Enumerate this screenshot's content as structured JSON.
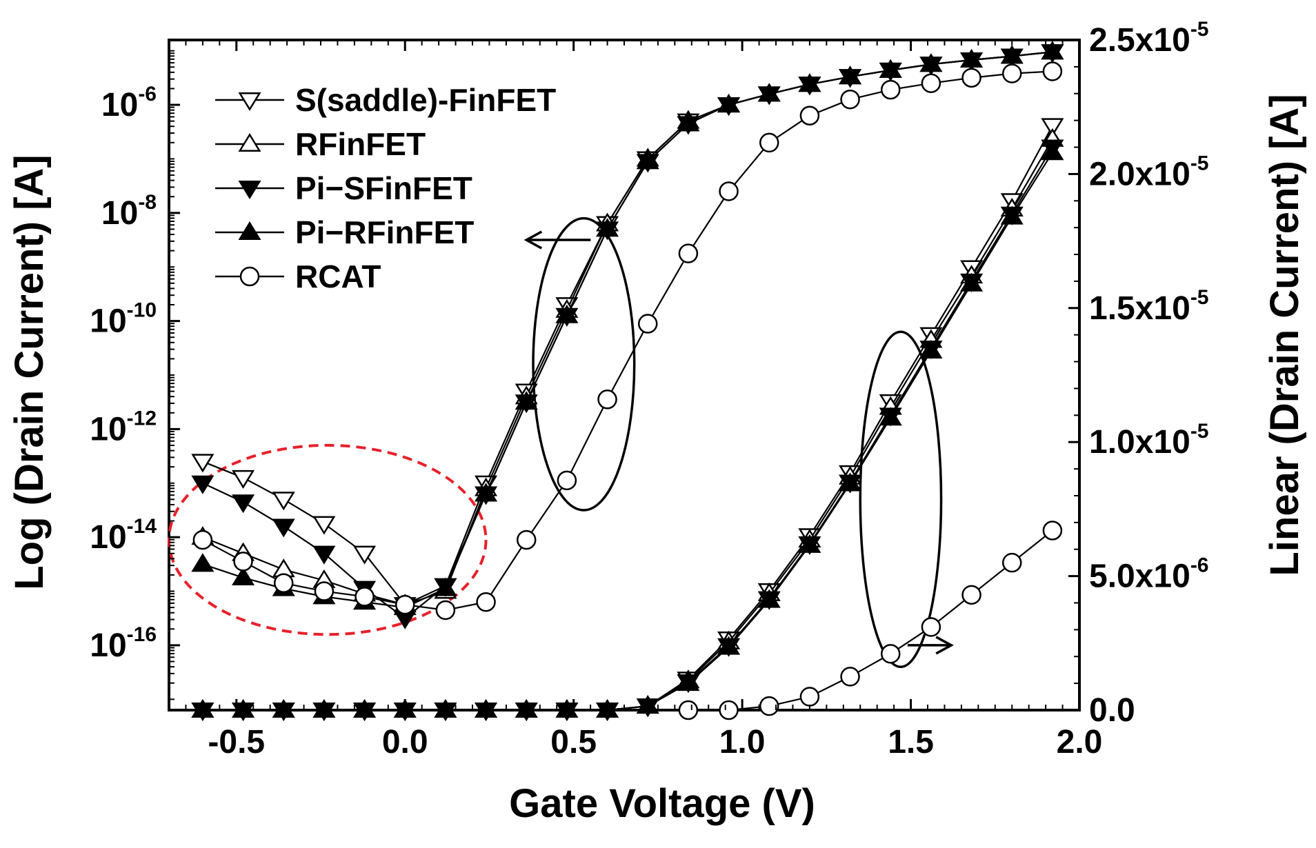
{
  "chart_data": {
    "type": "line",
    "xlabel": "Gate Voltage (V)",
    "ylabel_left": "Log (Drain Current) [A]",
    "ylabel_right": "Linear (Drain Current) [A]",
    "xlim": [
      -0.7,
      2.0
    ],
    "ylim_left_log10": [
      -17.2,
      -4.8
    ],
    "ylim_right": [
      0.0,
      2.5e-05
    ],
    "x_ticks": [
      -0.5,
      0.0,
      0.5,
      1.0,
      1.5,
      2.0
    ],
    "x_tick_labels": [
      "-0.5",
      "0.0",
      "0.5",
      "1.0",
      "1.5",
      "2.0"
    ],
    "y_left_ticks": [
      {
        "base": "10",
        "exp": "-6",
        "log": -6
      },
      {
        "base": "10",
        "exp": "-8",
        "log": -8
      },
      {
        "base": "10",
        "exp": "-10",
        "log": -10
      },
      {
        "base": "10",
        "exp": "-12",
        "log": -12
      },
      {
        "base": "10",
        "exp": "-14",
        "log": -14
      },
      {
        "base": "10",
        "exp": "-16",
        "log": -16
      }
    ],
    "y_right_ticks": [
      {
        "mant": "2.5x10",
        "exp": "-5",
        "value": 2.5e-05
      },
      {
        "mant": "2.0x10",
        "exp": "-5",
        "value": 2e-05
      },
      {
        "mant": "1.5x10",
        "exp": "-5",
        "value": 1.5e-05
      },
      {
        "mant": "1.0x10",
        "exp": "-5",
        "value": 1e-05
      },
      {
        "mant": "5.0x10",
        "exp": "-6",
        "value": 5e-06
      },
      {
        "mant": "0.0",
        "exp": "",
        "value": 0.0
      }
    ],
    "x": [
      -0.6,
      -0.48,
      -0.36,
      -0.24,
      -0.12,
      0.0,
      0.12,
      0.24,
      0.36,
      0.48,
      0.6,
      0.72,
      0.84,
      0.96,
      1.08,
      1.2,
      1.32,
      1.44,
      1.56,
      1.68,
      1.8,
      1.92
    ],
    "legend": [
      {
        "label": "S(saddle)-FinFET",
        "marker": "tri-down-open"
      },
      {
        "label": "RFinFET",
        "marker": "tri-up-open"
      },
      {
        "label": "Pi−SFinFET",
        "marker": "tri-down-filled"
      },
      {
        "label": "Pi−RFinFET",
        "marker": "tri-up-filled"
      },
      {
        "label": "RCAT",
        "marker": "circle-open"
      }
    ],
    "series_log": [
      {
        "name": "S(saddle)-FinFET",
        "marker": "tri-down-open",
        "log_values": [
          -12.6,
          -12.9,
          -13.3,
          -13.75,
          -14.3,
          -15.25,
          -14.9,
          -13.0,
          -11.3,
          -9.7,
          -8.2,
          -7.0,
          -6.3,
          -6.0,
          -5.8,
          -5.62,
          -5.48,
          -5.36,
          -5.25,
          -5.17,
          -5.1,
          -5.02
        ]
      },
      {
        "name": "RFinFET",
        "marker": "tri-up-open",
        "log_values": [
          -14.0,
          -14.3,
          -14.6,
          -14.8,
          -15.05,
          -15.25,
          -15.0,
          -13.1,
          -11.4,
          -9.8,
          -8.2,
          -7.0,
          -6.3,
          -6.0,
          -5.8,
          -5.62,
          -5.48,
          -5.36,
          -5.25,
          -5.17,
          -5.1,
          -5.02
        ]
      },
      {
        "name": "Pi−SFinFET",
        "marker": "tri-down-filled",
        "log_values": [
          -13.0,
          -13.35,
          -13.8,
          -14.3,
          -14.95,
          -15.5,
          -14.9,
          -13.2,
          -11.5,
          -9.9,
          -8.3,
          -7.05,
          -6.35,
          -6.0,
          -5.8,
          -5.62,
          -5.48,
          -5.36,
          -5.25,
          -5.17,
          -5.1,
          -5.02
        ]
      },
      {
        "name": "Pi−RFinFET",
        "marker": "tri-up-filled",
        "log_values": [
          -14.5,
          -14.75,
          -14.95,
          -15.1,
          -15.2,
          -15.3,
          -14.95,
          -13.2,
          -11.5,
          -9.9,
          -8.3,
          -7.05,
          -6.35,
          -6.0,
          -5.8,
          -5.62,
          -5.48,
          -5.36,
          -5.25,
          -5.17,
          -5.1,
          -5.02
        ]
      },
      {
        "name": "RCAT",
        "marker": "circle-open",
        "log_values": [
          -14.05,
          -14.45,
          -14.85,
          -15.0,
          -15.1,
          -15.25,
          -15.35,
          -15.2,
          -14.05,
          -12.95,
          -11.45,
          -10.05,
          -8.75,
          -7.6,
          -6.7,
          -6.2,
          -5.9,
          -5.72,
          -5.6,
          -5.5,
          -5.42,
          -5.38
        ]
      }
    ],
    "linear_x": [
      -0.6,
      -0.48,
      -0.36,
      -0.24,
      -0.12,
      0.0,
      0.12,
      0.24,
      0.36,
      0.48,
      0.6,
      0.72,
      0.84,
      0.96,
      1.08,
      1.2,
      1.32,
      1.44,
      1.56,
      1.68,
      1.8,
      1.92
    ],
    "series_linear": [
      {
        "name": "S(saddle)-FinFET",
        "marker": "tri-down-open",
        "values": [
          0,
          0,
          0,
          0,
          0,
          0,
          0,
          0,
          0,
          0,
          0,
          1.5e-07,
          1.15e-06,
          2.65e-06,
          4.45e-06,
          6.5e-06,
          8.85e-06,
          1.15e-05,
          1.4e-05,
          1.65e-05,
          1.9e-05,
          2.18e-05
        ]
      },
      {
        "name": "RFinFET",
        "marker": "tri-up-open",
        "values": [
          0,
          0,
          0,
          0,
          0,
          0,
          0,
          0,
          0,
          0,
          0,
          1.5e-07,
          1.1e-06,
          2.55e-06,
          4.35e-06,
          6.35e-06,
          8.7e-06,
          1.13e-05,
          1.38e-05,
          1.62e-05,
          1.87e-05,
          2.13e-05
        ]
      },
      {
        "name": "Pi−SFinFET",
        "marker": "tri-down-filled",
        "values": [
          0,
          0,
          0,
          0,
          0,
          0,
          0,
          0,
          0,
          0,
          0,
          1.5e-07,
          1.05e-06,
          2.4e-06,
          4.15e-06,
          6.2e-06,
          8.5e-06,
          1.1e-05,
          1.35e-05,
          1.6e-05,
          1.85e-05,
          2.1e-05
        ]
      },
      {
        "name": "Pi−RFinFET",
        "marker": "tri-up-filled",
        "values": [
          0,
          0,
          0,
          0,
          0,
          0,
          0,
          0,
          0,
          0,
          0,
          1.5e-07,
          1e-06,
          2.35e-06,
          4.1e-06,
          6.15e-06,
          8.45e-06,
          1.09e-05,
          1.34e-05,
          1.59e-05,
          1.84e-05,
          2.08e-05
        ]
      },
      {
        "name": "RCAT",
        "marker": "circle-open",
        "values": [
          null,
          null,
          null,
          null,
          null,
          null,
          null,
          null,
          null,
          null,
          null,
          null,
          0,
          0,
          1.5e-07,
          5e-07,
          1.25e-06,
          2.1e-06,
          3.1e-06,
          4.3e-06,
          5.5e-06,
          6.7e-06
        ]
      }
    ],
    "annotations": {
      "left_ellipse": {
        "cx": 0.53,
        "cy_log": -10.8,
        "rx": 0.15,
        "ry_log": 2.7,
        "arrow_to_x": 0.36,
        "arrow_y_log": -8.5,
        "arrow_direction": "left"
      },
      "right_ellipse": {
        "cx": 1.47,
        "cy_log": -13.3,
        "rx": 0.12,
        "ry_log": 3.1,
        "arrow_to_x": 1.62,
        "arrow_y_log": -16.0,
        "arrow_direction": "right"
      },
      "dashed_ellipse": {
        "cx": -0.23,
        "cy_log": -14.05,
        "rx": 0.47,
        "ry_log": 1.75,
        "color": "#e8202a"
      }
    }
  }
}
